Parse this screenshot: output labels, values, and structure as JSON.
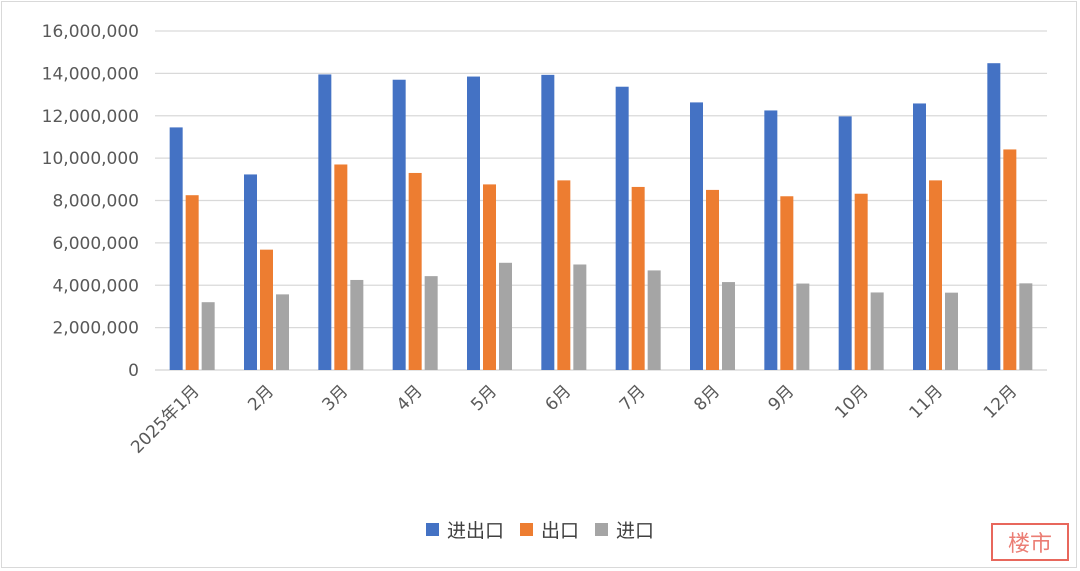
{
  "chart_data": {
    "type": "bar",
    "title": "",
    "xlabel": "",
    "ylabel": "",
    "ylim": [
      0,
      16000000
    ],
    "yticks": [
      0,
      2000000,
      4000000,
      6000000,
      8000000,
      10000000,
      12000000,
      14000000,
      16000000
    ],
    "ytick_labels": [
      "0",
      "2,000,000",
      "4,000,000",
      "6,000,000",
      "8,000,000",
      "10,000,000",
      "12,000,000",
      "14,000,000",
      "16,000,000"
    ],
    "categories": [
      "2025年1月",
      "2月",
      "3月",
      "4月",
      "5月",
      "6月",
      "7月",
      "8月",
      "9月",
      "10月",
      "11月",
      "12月"
    ],
    "grid": true,
    "legend_position": "bottom",
    "series": [
      {
        "name": "进出口",
        "color": "#4472c4",
        "values": [
          11450000,
          9230000,
          13950000,
          13700000,
          13850000,
          13930000,
          13370000,
          12630000,
          12250000,
          11970000,
          12580000,
          14480000
        ]
      },
      {
        "name": "出口",
        "color": "#ed7d31",
        "values": [
          8250000,
          5680000,
          9700000,
          9300000,
          8760000,
          8950000,
          8640000,
          8500000,
          8200000,
          8320000,
          8950000,
          10410000
        ]
      },
      {
        "name": "进口",
        "color": "#a5a5a5",
        "values": [
          3200000,
          3570000,
          4250000,
          4430000,
          5060000,
          4980000,
          4700000,
          4150000,
          4080000,
          3660000,
          3650000,
          4090000
        ]
      }
    ]
  },
  "watermark": {
    "text": "楼市",
    "color": "#e8675c"
  }
}
